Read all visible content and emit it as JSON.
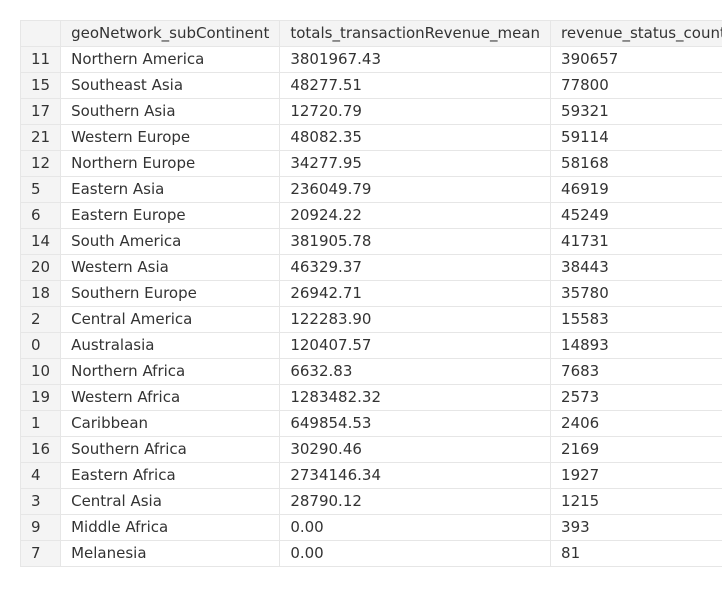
{
  "table": {
    "columns": [
      "",
      "geoNetwork_subContinent",
      "totals_transactionRevenue_mean",
      "revenue_status_count"
    ],
    "rows": [
      {
        "index": "11",
        "subcontinent": "Northern America",
        "revenue_mean": "3801967.43",
        "status_count": "390657"
      },
      {
        "index": "15",
        "subcontinent": "Southeast Asia",
        "revenue_mean": "48277.51",
        "status_count": "77800"
      },
      {
        "index": "17",
        "subcontinent": "Southern Asia",
        "revenue_mean": "12720.79",
        "status_count": "59321"
      },
      {
        "index": "21",
        "subcontinent": "Western Europe",
        "revenue_mean": "48082.35",
        "status_count": "59114"
      },
      {
        "index": "12",
        "subcontinent": "Northern Europe",
        "revenue_mean": "34277.95",
        "status_count": "58168"
      },
      {
        "index": "5",
        "subcontinent": "Eastern Asia",
        "revenue_mean": "236049.79",
        "status_count": "46919"
      },
      {
        "index": "6",
        "subcontinent": "Eastern Europe",
        "revenue_mean": "20924.22",
        "status_count": "45249"
      },
      {
        "index": "14",
        "subcontinent": "South America",
        "revenue_mean": "381905.78",
        "status_count": "41731"
      },
      {
        "index": "20",
        "subcontinent": "Western Asia",
        "revenue_mean": "46329.37",
        "status_count": "38443"
      },
      {
        "index": "18",
        "subcontinent": "Southern Europe",
        "revenue_mean": "26942.71",
        "status_count": "35780"
      },
      {
        "index": "2",
        "subcontinent": "Central America",
        "revenue_mean": "122283.90",
        "status_count": "15583"
      },
      {
        "index": "0",
        "subcontinent": "Australasia",
        "revenue_mean": "120407.57",
        "status_count": "14893"
      },
      {
        "index": "10",
        "subcontinent": "Northern Africa",
        "revenue_mean": "6632.83",
        "status_count": "7683"
      },
      {
        "index": "19",
        "subcontinent": "Western Africa",
        "revenue_mean": "1283482.32",
        "status_count": "2573"
      },
      {
        "index": "1",
        "subcontinent": "Caribbean",
        "revenue_mean": "649854.53",
        "status_count": "2406"
      },
      {
        "index": "16",
        "subcontinent": "Southern Africa",
        "revenue_mean": "30290.46",
        "status_count": "2169"
      },
      {
        "index": "4",
        "subcontinent": "Eastern Africa",
        "revenue_mean": "2734146.34",
        "status_count": "1927"
      },
      {
        "index": "3",
        "subcontinent": "Central Asia",
        "revenue_mean": "28790.12",
        "status_count": "1215"
      },
      {
        "index": "9",
        "subcontinent": "Middle Africa",
        "revenue_mean": "0.00",
        "status_count": "393"
      },
      {
        "index": "7",
        "subcontinent": "Melanesia",
        "revenue_mean": "0.00",
        "status_count": "81"
      }
    ]
  }
}
